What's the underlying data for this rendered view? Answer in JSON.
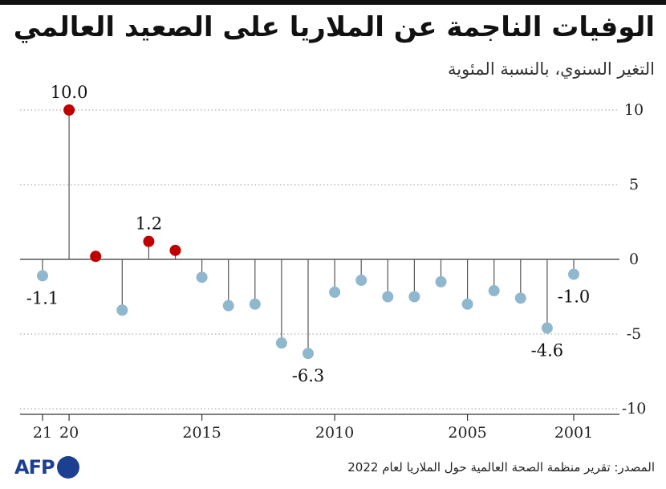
{
  "title": "الوفيات الناجمة عن الملاريا على الصعيد العالمي",
  "subtitle": "التغير السنوي، بالنسبة المئوية",
  "source": "المصدر: تقرير منظمة الصحة العالمية حول الملاريا لعام 2022",
  "logo": {
    "text": "AFP",
    "color": "#1c3f8f"
  },
  "colors": {
    "highlight": "#c00000",
    "normal": "#8fb8cf",
    "stem": "#555555",
    "grid": "#999999"
  },
  "chart_data": {
    "type": "scatter",
    "ylim": [
      -10,
      10
    ],
    "yticks": [
      10,
      5,
      0,
      -5,
      -10
    ],
    "xticks": [
      {
        "year": 2021,
        "label": "21"
      },
      {
        "year": 2020,
        "label": "20"
      },
      {
        "year": 2015,
        "label": "2015"
      },
      {
        "year": 2010,
        "label": "2010"
      },
      {
        "year": 2005,
        "label": "2005"
      },
      {
        "year": 2001,
        "label": "2001"
      }
    ],
    "points": [
      {
        "year": 2021,
        "value": -1.1,
        "highlight": false,
        "label": "-1.1"
      },
      {
        "year": 2020,
        "value": 10.0,
        "highlight": true,
        "label": "10.0"
      },
      {
        "year": 2019,
        "value": 0.2,
        "highlight": true,
        "label": ""
      },
      {
        "year": 2018,
        "value": -3.4,
        "highlight": false,
        "label": ""
      },
      {
        "year": 2017,
        "value": 1.2,
        "highlight": true,
        "label": "1.2"
      },
      {
        "year": 2016,
        "value": 0.6,
        "highlight": true,
        "label": ""
      },
      {
        "year": 2015,
        "value": -1.2,
        "highlight": false,
        "label": ""
      },
      {
        "year": 2014,
        "value": -3.1,
        "highlight": false,
        "label": ""
      },
      {
        "year": 2013,
        "value": -3.0,
        "highlight": false,
        "label": ""
      },
      {
        "year": 2012,
        "value": -5.6,
        "highlight": false,
        "label": ""
      },
      {
        "year": 2011,
        "value": -6.3,
        "highlight": false,
        "label": "-6.3"
      },
      {
        "year": 2010,
        "value": -2.2,
        "highlight": false,
        "label": ""
      },
      {
        "year": 2009,
        "value": -1.4,
        "highlight": false,
        "label": ""
      },
      {
        "year": 2008,
        "value": -2.5,
        "highlight": false,
        "label": ""
      },
      {
        "year": 2007,
        "value": -2.5,
        "highlight": false,
        "label": ""
      },
      {
        "year": 2006,
        "value": -1.5,
        "highlight": false,
        "label": ""
      },
      {
        "year": 2005,
        "value": -3.0,
        "highlight": false,
        "label": ""
      },
      {
        "year": 2004,
        "value": -2.1,
        "highlight": false,
        "label": ""
      },
      {
        "year": 2003,
        "value": -2.6,
        "highlight": false,
        "label": ""
      },
      {
        "year": 2002,
        "value": -4.6,
        "highlight": false,
        "label": "-4.6"
      },
      {
        "year": 2001,
        "value": -1.0,
        "highlight": false,
        "label": "-1.0"
      }
    ]
  }
}
